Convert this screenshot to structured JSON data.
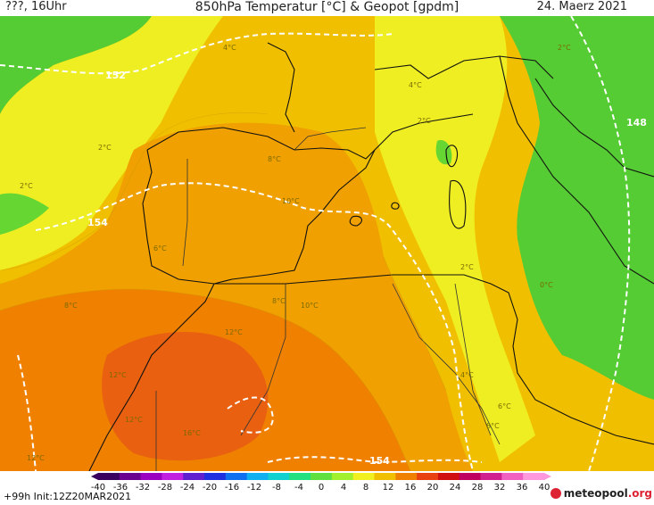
{
  "header": {
    "left": "???, 16Uhr",
    "title": "850hPa Temperatur [°C] & Geopot [gpdm]",
    "date": "24. Maerz 2021"
  },
  "footer": {
    "run": "+99h Init:12Z20MAR2021",
    "brand": "meteopool",
    "brand_tld": ".org"
  },
  "legend": {
    "labels": [
      "-40",
      "-36",
      "-32",
      "-28",
      "-24",
      "-20",
      "-16",
      "-12",
      "-8",
      "-4",
      "0",
      "4",
      "8",
      "12",
      "16",
      "20",
      "24",
      "28",
      "32",
      "36",
      "40"
    ],
    "colors": [
      "#3a0060",
      "#6a0090",
      "#9a00c0",
      "#c020e0",
      "#6020d0",
      "#2030e0",
      "#1070f0",
      "#10b0f0",
      "#10d0d0",
      "#20e080",
      "#60e040",
      "#a0f030",
      "#f0f020",
      "#f0c000",
      "#f08000",
      "#e84010",
      "#d01010",
      "#c00060",
      "#d02090",
      "#f060c0",
      "#ff99dd"
    ],
    "unit": "°C"
  },
  "isolines": {
    "geopot_labels": [
      "152",
      "154",
      "154",
      "148"
    ],
    "temp_labels": [
      "4°C",
      "2°C",
      "2°C",
      "2°C",
      "4°C",
      "8°C",
      "2°C",
      "10°C",
      "6°C",
      "10°C",
      "8°C",
      "2°C",
      "0°C",
      "8°C",
      "12°C",
      "12°C",
      "4°C",
      "6°C",
      "8°C",
      "12°C",
      "16°C",
      "12°C"
    ]
  },
  "colors": {
    "green": "#55cc33",
    "yellow": "#eeee22",
    "light_orange": "#f0c000",
    "orange": "#f0a000",
    "dark_orange": "#f08000",
    "red_orange": "#e86010"
  }
}
